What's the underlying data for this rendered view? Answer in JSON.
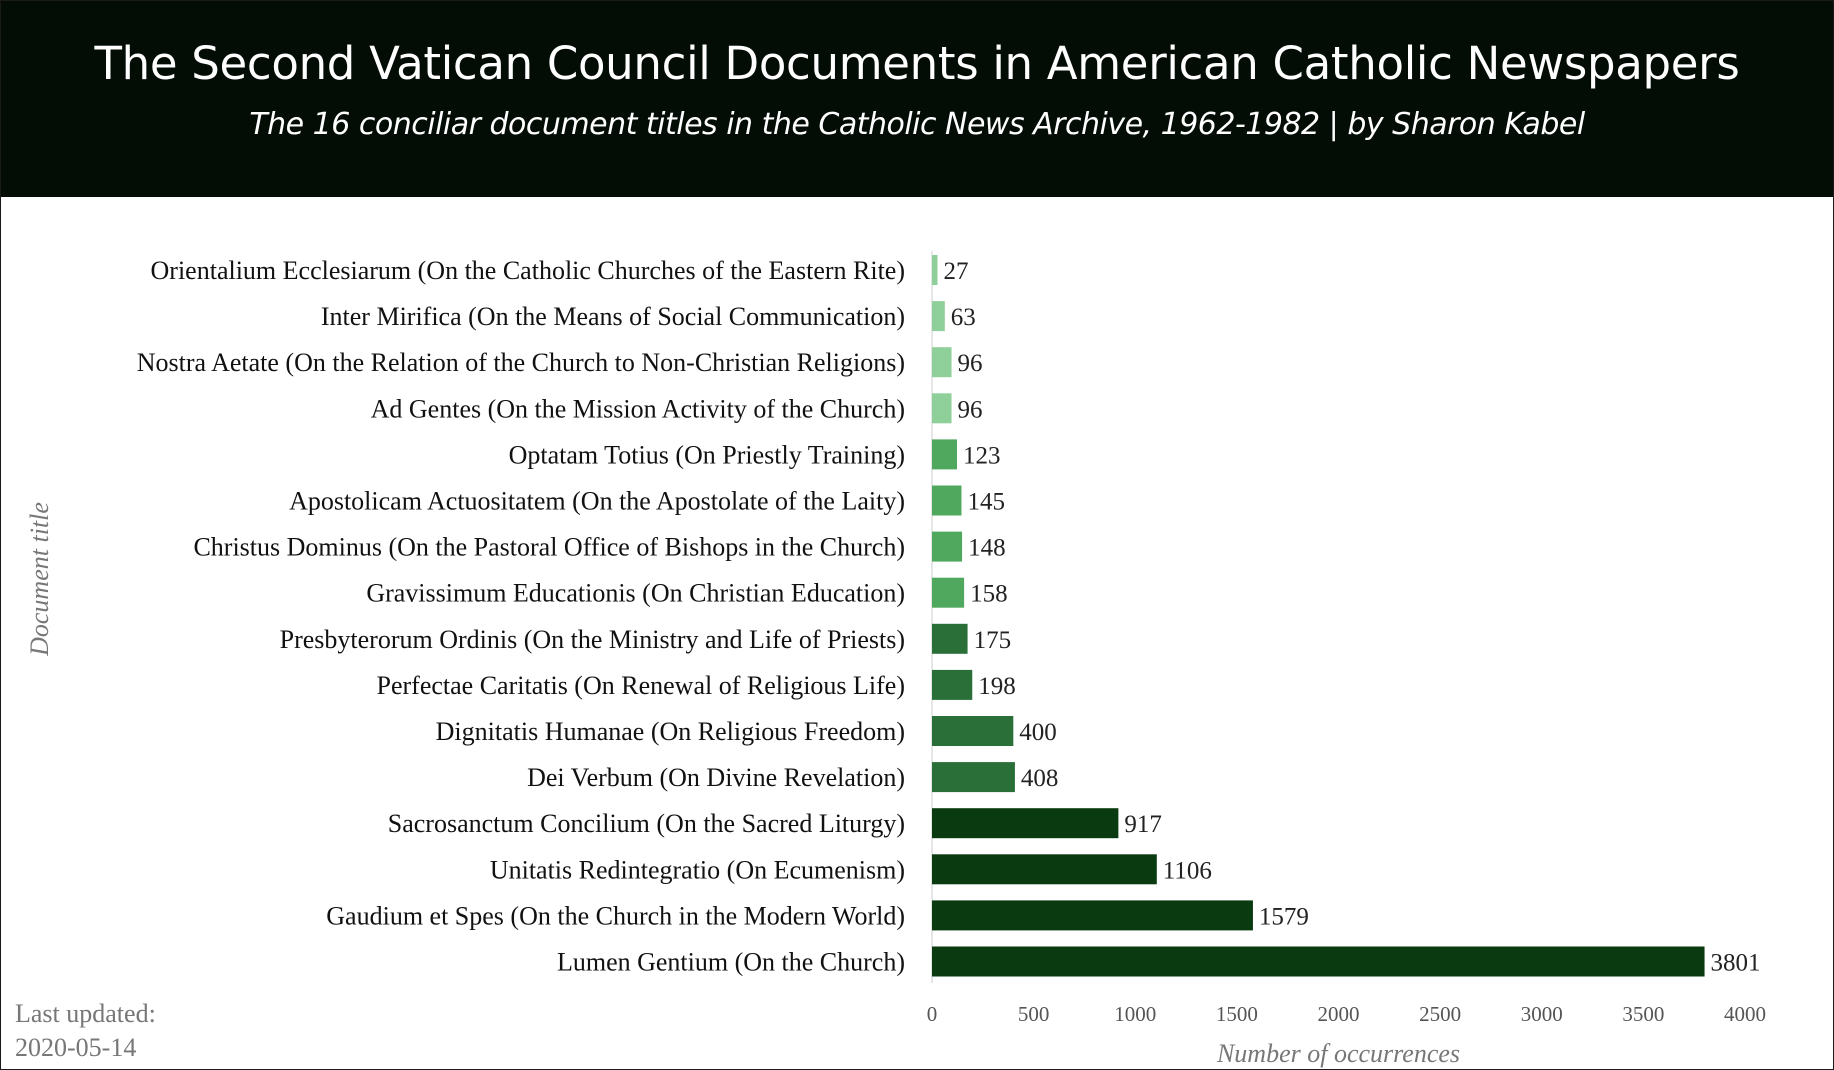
{
  "header": {
    "title": "The Second Vatican Council Documents in American Catholic Newspapers",
    "subtitle": "The 16 conciliar document titles in the Catholic News Archive, 1962-1982 | by Sharon Kabel"
  },
  "footer": {
    "updated_label": "Last updated:",
    "updated_date": "2020-05-14"
  },
  "colors": {
    "header_bg": "#030d06",
    "light_green": "#8fcf99",
    "medium_green": "#4fa85e",
    "dark_green": "#2a6e38",
    "darkest_green": "#0a3a0f"
  },
  "chart_data": {
    "type": "bar",
    "orientation": "horizontal",
    "xlabel": "Number of  occurrences",
    "ylabel": "Document title",
    "xlim": [
      0,
      4000
    ],
    "xticks": [
      0,
      500,
      1000,
      1500,
      2000,
      2500,
      3000,
      3500,
      4000
    ],
    "grid": false,
    "categories": [
      "Orientalium Ecclesiarum (On the Catholic Churches of the Eastern Rite)",
      "Inter Mirifica (On the Means of Social Communication)",
      "Nostra Aetate (On the Relation of the Church to Non-Christian Religions)",
      "Ad Gentes (On the Mission Activity of the Church)",
      "Optatam Totius (On Priestly Training)",
      "Apostolicam Actuositatem (On the Apostolate of the Laity)",
      "Christus Dominus (On the Pastoral Office of Bishops in the Church)",
      "Gravissimum Educationis (On Christian Education)",
      "Presbyterorum Ordinis (On the Ministry and Life of Priests)",
      "Perfectae Caritatis (On Renewal of Religious Life)",
      "Dignitatis Humanae (On Religious Freedom)",
      "Dei Verbum (On Divine Revelation)",
      "Sacrosanctum Concilium (On the Sacred Liturgy)",
      "Unitatis Redintegratio (On Ecumenism)",
      "Gaudium et Spes (On the Church in the Modern World)",
      "Lumen Gentium (On the Church)"
    ],
    "values": [
      27,
      63,
      96,
      96,
      123,
      145,
      148,
      158,
      175,
      198,
      400,
      408,
      917,
      1106,
      1579,
      3801
    ],
    "bar_colors": [
      "#8fcf99",
      "#8fcf99",
      "#8fcf99",
      "#8fcf99",
      "#4fa85e",
      "#4fa85e",
      "#4fa85e",
      "#4fa85e",
      "#2a6e38",
      "#2a6e38",
      "#2a6e38",
      "#2a6e38",
      "#0a3a0f",
      "#0a3a0f",
      "#0a3a0f",
      "#0a3a0f"
    ]
  }
}
